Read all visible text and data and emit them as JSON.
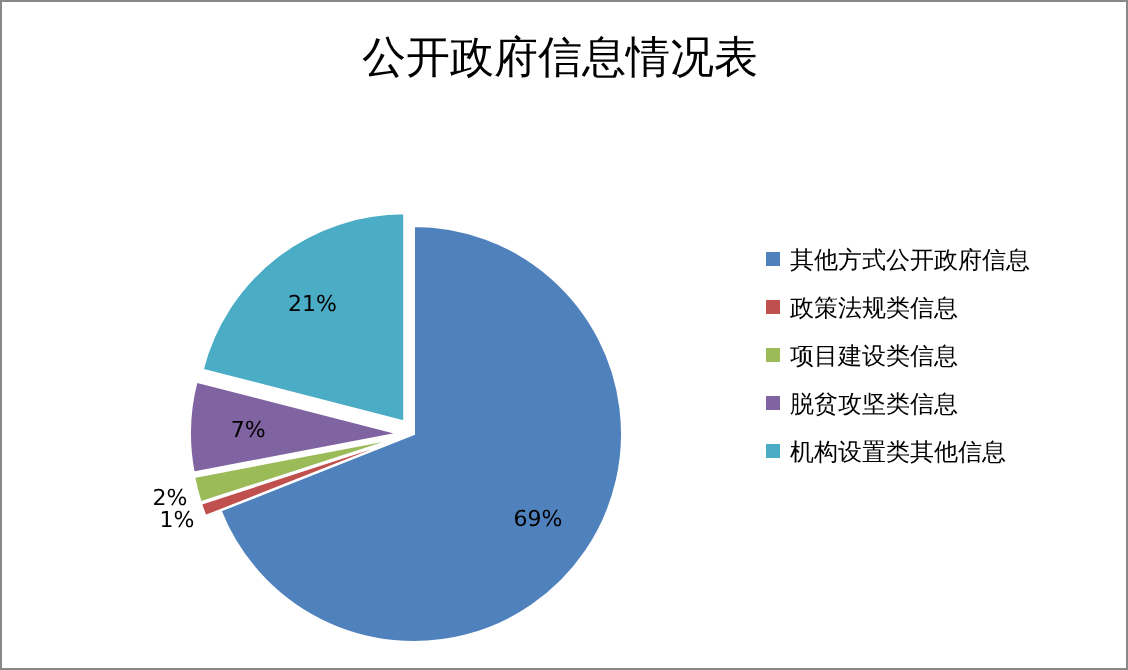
{
  "chart_data": {
    "type": "pie",
    "title": "公开政府信息情况表",
    "categories": [
      "其他方式公开政府信息",
      "政策法规类信息",
      "项目建设类信息",
      "脱贫攻坚类信息",
      "机构设置类其他信息"
    ],
    "values": [
      69,
      1,
      2,
      7,
      21
    ],
    "value_labels": [
      "69%",
      "1%",
      "2%",
      "7%",
      "21%"
    ],
    "colors": [
      "#4f81bd",
      "#c0504d",
      "#9bbb59",
      "#8064a2",
      "#4bacc6"
    ],
    "legend": "right"
  }
}
